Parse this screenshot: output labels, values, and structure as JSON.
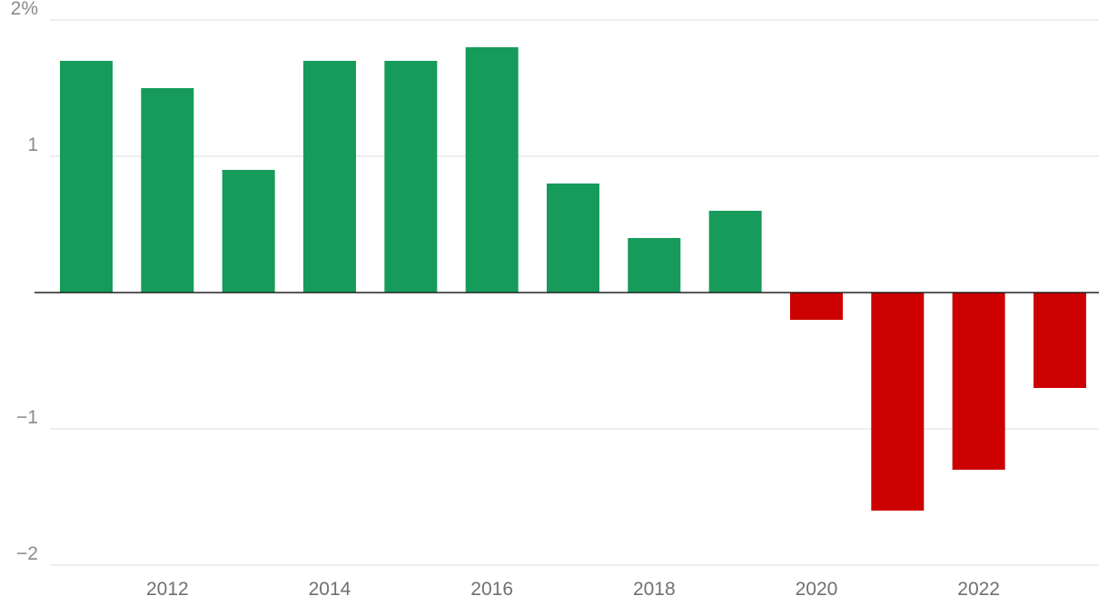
{
  "chart_data": {
    "type": "bar",
    "categories": [
      "2011",
      "2012",
      "2013",
      "2014",
      "2015",
      "2016",
      "2017",
      "2018",
      "2019",
      "2020",
      "2021",
      "2022",
      "2023"
    ],
    "values": [
      1.7,
      1.5,
      0.9,
      1.7,
      1.7,
      1.8,
      0.8,
      0.4,
      0.6,
      -0.2,
      -1.6,
      -1.3,
      -0.7
    ],
    "x_tick_labels": [
      "2012",
      "2014",
      "2016",
      "2018",
      "2020",
      "2022"
    ],
    "y_ticks": [
      2,
      1,
      0,
      -1,
      -2
    ],
    "y_tick_labels": [
      "2%",
      "1",
      "",
      "−1",
      "−2"
    ],
    "ylim": [
      -2,
      2
    ],
    "grid": true,
    "colors": {
      "positive": "#169b5a",
      "negative": "#cc0000",
      "grid": "#dddddd",
      "zero_line": "#222222"
    },
    "title": "",
    "xlabel": "",
    "ylabel": ""
  }
}
